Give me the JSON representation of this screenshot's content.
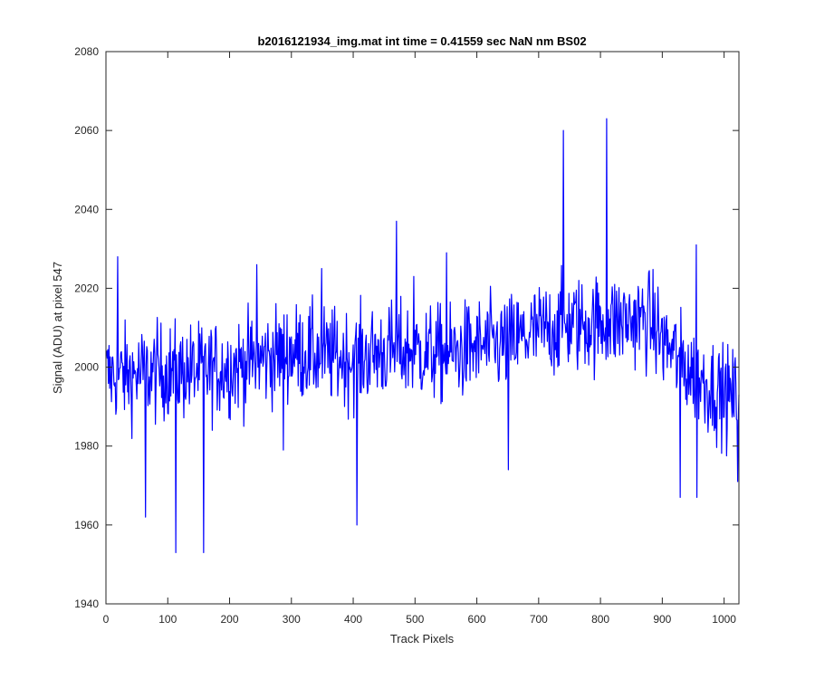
{
  "chart_data": {
    "type": "line",
    "title": "b2016121934_img.mat int time = 0.41559 sec  NaN nm BS02",
    "xlabel": "Track Pixels",
    "ylabel": "Signal (ADU) at pixel 547",
    "xlim": [
      0,
      1024
    ],
    "ylim": [
      1940,
      2080
    ],
    "xticks": [
      0,
      100,
      200,
      300,
      400,
      500,
      600,
      700,
      800,
      900,
      1000
    ],
    "yticks": [
      1940,
      1960,
      1980,
      2000,
      2020,
      2040,
      2060,
      2080
    ],
    "grid": false,
    "line_color": "#0000ff",
    "series": [
      {
        "x_start": 1,
        "x_step": 1,
        "note_points": "1024 samples, noisy signal around a slowly varying baseline",
        "baseline": [
          [
            0,
            1998
          ],
          [
            50,
            1998
          ],
          [
            100,
            1999
          ],
          [
            150,
            1999
          ],
          [
            200,
            2000
          ],
          [
            250,
            2002
          ],
          [
            300,
            2004
          ],
          [
            350,
            2003
          ],
          [
            400,
            2002
          ],
          [
            450,
            2004
          ],
          [
            500,
            2004
          ],
          [
            550,
            2003
          ],
          [
            600,
            2005
          ],
          [
            650,
            2006
          ],
          [
            700,
            2009
          ],
          [
            750,
            2011
          ],
          [
            800,
            2011
          ],
          [
            850,
            2012
          ],
          [
            880,
            2012
          ],
          [
            900,
            2007
          ],
          [
            950,
            1998
          ],
          [
            1000,
            1993
          ],
          [
            1024,
            1992
          ]
        ],
        "spikes": [
          [
            19,
            2028
          ],
          [
            64,
            1962
          ],
          [
            113,
            1953
          ],
          [
            158,
            1953
          ],
          [
            244,
            2026
          ],
          [
            287,
            1979
          ],
          [
            349,
            2025
          ],
          [
            406,
            1960
          ],
          [
            470,
            2037
          ],
          [
            498,
            2023
          ],
          [
            551,
            2029
          ],
          [
            651,
            1974
          ],
          [
            740,
            2060
          ],
          [
            810,
            2063
          ],
          [
            929,
            1967
          ],
          [
            955,
            2031
          ],
          [
            956,
            1967
          ],
          [
            1022,
            1971
          ]
        ]
      }
    ]
  }
}
